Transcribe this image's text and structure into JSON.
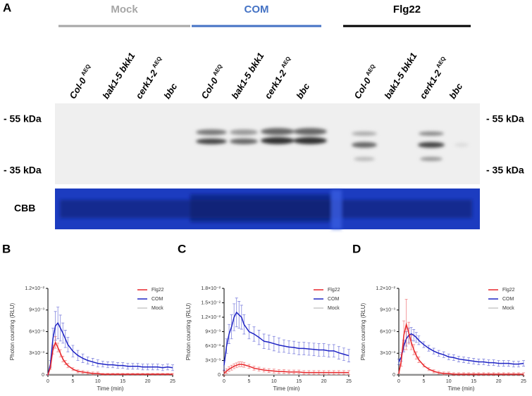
{
  "panel_a": {
    "label": "A",
    "groups": [
      "Mock",
      "COM",
      "Flg22"
    ],
    "group_colors": [
      "#a6a6a6",
      "#4472c4",
      "#000000"
    ],
    "lanes": [
      {
        "name": "Col-0",
        "sup": "AEQ"
      },
      {
        "name": "bak1-5 bkk1"
      },
      {
        "name": "cerk1-2",
        "sup": "AEQ"
      },
      {
        "name": "bbc"
      }
    ],
    "markers": [
      "- 55 kDa",
      "- 35 kDa"
    ],
    "stain": "CBB"
  },
  "chart_data": [
    {
      "type": "line",
      "panel": "B",
      "xlabel": "Time (min)",
      "ylabel": "Photon counting (RLU)",
      "legend": "upper right",
      "x": [
        0,
        0.5,
        1,
        1.5,
        2,
        2.5,
        3,
        3.5,
        4,
        5,
        6,
        7,
        8,
        9,
        10,
        11,
        12,
        13,
        14,
        15,
        16,
        17,
        18,
        19,
        20,
        21,
        22,
        23,
        24,
        25
      ],
      "xlim": [
        0,
        25
      ],
      "xticks": [
        0,
        5,
        10,
        15,
        20,
        25
      ],
      "ylim": [
        0,
        0.012
      ],
      "yticks": [
        0,
        {
          "value": 0.003,
          "label": "3×10⁻³"
        },
        {
          "value": 0.006,
          "label": "6×10⁻³"
        },
        {
          "value": 0.009,
          "label": "9×10⁻³"
        },
        {
          "value": 0.012,
          "label": "1.2×10⁻²"
        }
      ],
      "series": [
        {
          "name": "Flg22",
          "color": "#e8262a",
          "values": [
            0,
            0.001,
            0.0035,
            0.0045,
            0.0038,
            0.003,
            0.0022,
            0.0017,
            0.0013,
            0.0008,
            0.0005,
            0.0004,
            0.0003,
            0.0002,
            0.0002,
            0.0001,
            0.0001,
            0.0001,
            0.0001,
            0.0001,
            0.0001,
            0.0001,
            0.0001,
            0.0001,
            0.0001,
            0.0001,
            0.0001,
            0.0001,
            0.0001,
            0.0001
          ],
          "errors": [
            0,
            0.0002,
            0.0006,
            0.0008,
            0.0006,
            0.0005,
            0.0004,
            0.0003,
            0.0003,
            0.0002,
            0.0002,
            0.0002,
            0.0002,
            0.0002,
            0.0002,
            0.0001,
            0.0001,
            0.0001,
            0.0001,
            0.0001,
            0.0001,
            0.0001,
            0.0001,
            0.0001,
            0.0001,
            0.0001,
            0.0001,
            0.0001,
            0.0001,
            0.0001
          ]
        },
        {
          "name": "COM",
          "color": "#1f24c4",
          "values": [
            0,
            0.0015,
            0.005,
            0.0068,
            0.0072,
            0.0065,
            0.0058,
            0.005,
            0.0042,
            0.0033,
            0.0027,
            0.0023,
            0.002,
            0.0018,
            0.0016,
            0.0015,
            0.0014,
            0.0014,
            0.0013,
            0.0013,
            0.0012,
            0.0012,
            0.0012,
            0.0011,
            0.0011,
            0.0011,
            0.0011,
            0.001,
            0.0011,
            0.001
          ],
          "errors": [
            0,
            0.0005,
            0.0015,
            0.002,
            0.0022,
            0.0018,
            0.0014,
            0.0012,
            0.001,
            0.0008,
            0.0007,
            0.0006,
            0.0005,
            0.0005,
            0.0005,
            0.0004,
            0.0004,
            0.0004,
            0.0004,
            0.0004,
            0.0004,
            0.0004,
            0.0004,
            0.0004,
            0.0004,
            0.0004,
            0.0004,
            0.0004,
            0.0004,
            0.0004
          ]
        },
        {
          "name": "Mock",
          "color": "#c8c8c8",
          "values": [
            0.0001,
            0.0001,
            0.0001,
            0.0001,
            0.0001,
            0.0001,
            0.0001,
            0.0001,
            0.0001,
            0.0001,
            0.0001,
            0.0001,
            0.0001,
            0.0001,
            0.0001,
            0.0001,
            0.0001,
            0.0001,
            0.0001,
            0.0001,
            0.0001,
            0.0001,
            0.0001,
            0.0001,
            0.0001,
            0.0001,
            0.0001,
            0.0001,
            0.0001,
            0.0001
          ]
        }
      ]
    },
    {
      "type": "line",
      "panel": "C",
      "xlabel": "Time (min)",
      "ylabel": "Photon counting (RLU)",
      "legend": "upper right",
      "x": [
        0,
        0.5,
        1,
        1.5,
        2,
        2.5,
        3,
        3.5,
        4,
        5,
        6,
        7,
        8,
        9,
        10,
        11,
        12,
        13,
        14,
        15,
        16,
        17,
        18,
        19,
        20,
        21,
        22,
        23,
        24,
        25
      ],
      "xlim": [
        0,
        25
      ],
      "xticks": [
        0,
        5,
        10,
        15,
        20,
        25
      ],
      "ylim": [
        0,
        0.018
      ],
      "yticks": [
        0,
        {
          "value": 0.003,
          "label": "3×10⁻³"
        },
        {
          "value": 0.006,
          "label": "6×10⁻³"
        },
        {
          "value": 0.009,
          "label": "9×10⁻³"
        },
        {
          "value": 0.012,
          "label": "1.2×10⁻²"
        },
        {
          "value": 0.015,
          "label": "1.5×10⁻²"
        },
        {
          "value": 0.018,
          "label": "1.8×10⁻²"
        }
      ],
      "series": [
        {
          "name": "Flg22",
          "color": "#e8262a",
          "values": [
            0.0003,
            0.0008,
            0.0012,
            0.0015,
            0.0018,
            0.002,
            0.0022,
            0.0022,
            0.0021,
            0.0018,
            0.0014,
            0.0012,
            0.001,
            0.0009,
            0.0008,
            0.0007,
            0.0007,
            0.0006,
            0.0006,
            0.0006,
            0.0005,
            0.0005,
            0.0005,
            0.0005,
            0.0005,
            0.0005,
            0.0005,
            0.0005,
            0.0005,
            0.0005
          ],
          "errors": [
            0.0005,
            0.0005,
            0.0005,
            0.0005,
            0.0005,
            0.0005,
            0.0005,
            0.0005,
            0.0005,
            0.0004,
            0.0004,
            0.0004,
            0.0004,
            0.0004,
            0.0004,
            0.0004,
            0.0004,
            0.0004,
            0.0004,
            0.0004,
            0.0004,
            0.0004,
            0.0004,
            0.0004,
            0.0004,
            0.0004,
            0.0004,
            0.0004,
            0.0004,
            0.0004
          ]
        },
        {
          "name": "COM",
          "color": "#1f24c4",
          "values": [
            0.002,
            0.006,
            0.0085,
            0.01,
            0.012,
            0.013,
            0.0125,
            0.012,
            0.0105,
            0.009,
            0.0085,
            0.0078,
            0.007,
            0.0068,
            0.0065,
            0.0062,
            0.006,
            0.0058,
            0.0057,
            0.0055,
            0.0055,
            0.0054,
            0.0053,
            0.0052,
            0.0052,
            0.005,
            0.005,
            0.0046,
            0.0043,
            0.004
          ],
          "errors": [
            0.001,
            0.0015,
            0.002,
            0.0025,
            0.0028,
            0.003,
            0.0028,
            0.0025,
            0.002,
            0.0015,
            0.0015,
            0.0015,
            0.0015,
            0.0015,
            0.0015,
            0.0015,
            0.0013,
            0.0013,
            0.0013,
            0.0013,
            0.0013,
            0.0013,
            0.0013,
            0.0013,
            0.0013,
            0.0013,
            0.0013,
            0.0013,
            0.0013,
            0.0013
          ]
        },
        {
          "name": "Mock",
          "color": "#c8c8c8",
          "values": [
            0.0001,
            0.0001,
            0.0001,
            0.0001,
            0.0001,
            0.0001,
            0.0001,
            0.0001,
            0.0001,
            0.0001,
            0.0001,
            0.0001,
            0.0001,
            0.0001,
            0.0001,
            0.0001,
            0.0001,
            0.0001,
            0.0001,
            0.0001,
            0.0001,
            0.0001,
            0.0001,
            0.0001,
            0.0001,
            0.0001,
            0.0001,
            0.0001,
            0.0001,
            0.0001
          ]
        }
      ]
    },
    {
      "type": "line",
      "panel": "D",
      "xlabel": "Time (min)",
      "ylabel": "Photon counting (RLU)",
      "legend": "upper right",
      "x": [
        0,
        0.5,
        1,
        1.5,
        2,
        2.5,
        3,
        3.5,
        4,
        5,
        6,
        7,
        8,
        9,
        10,
        11,
        12,
        13,
        14,
        15,
        16,
        17,
        18,
        19,
        20,
        21,
        22,
        23,
        24,
        25
      ],
      "xlim": [
        0,
        25
      ],
      "xticks": [
        0,
        5,
        10,
        15,
        20,
        25
      ],
      "ylim": [
        0,
        0.012
      ],
      "yticks": [
        0,
        {
          "value": 0.003,
          "label": "3×10⁻³"
        },
        {
          "value": 0.006,
          "label": "6×10⁻³"
        },
        {
          "value": 0.009,
          "label": "9×10⁻³"
        },
        {
          "value": 0.012,
          "label": "1.2×10⁻²"
        }
      ],
      "series": [
        {
          "name": "Flg22",
          "color": "#e8262a",
          "values": [
            0.0002,
            0.002,
            0.0055,
            0.007,
            0.0058,
            0.0045,
            0.0035,
            0.0027,
            0.0021,
            0.0013,
            0.0008,
            0.0005,
            0.0003,
            0.0002,
            0.0002,
            0.0001,
            0.0001,
            0.0001,
            0.0001,
            0.0001,
            0.0001,
            0.0001,
            0.0001,
            0.0001,
            0.0001,
            0.0001,
            0.0001,
            0.0001,
            0.0001,
            0.0001
          ],
          "errors": [
            0,
            0.0008,
            0.002,
            0.0035,
            0.0015,
            0.001,
            0.0007,
            0.0005,
            0.0004,
            0.0002,
            0.0002,
            0.0002,
            0.0002,
            0.0002,
            0.0002,
            0.0002,
            0.0002,
            0.0002,
            0.0002,
            0.0002,
            0.0002,
            0.0002,
            0.0002,
            0.0002,
            0.0002,
            0.0002,
            0.0002,
            0.0002,
            0.0002,
            0.0002
          ]
        },
        {
          "name": "COM",
          "color": "#1f24c4",
          "values": [
            0.0018,
            0.0025,
            0.004,
            0.005,
            0.0055,
            0.0057,
            0.0055,
            0.0052,
            0.0048,
            0.0042,
            0.0037,
            0.0033,
            0.003,
            0.0028,
            0.0025,
            0.0024,
            0.0022,
            0.0021,
            0.002,
            0.0019,
            0.0018,
            0.0018,
            0.0017,
            0.0017,
            0.0016,
            0.0016,
            0.0016,
            0.0015,
            0.0015,
            0.0016
          ],
          "errors": [
            0.0004,
            0.0006,
            0.0008,
            0.001,
            0.001,
            0.0009,
            0.0008,
            0.0007,
            0.0006,
            0.0004,
            0.0004,
            0.0004,
            0.0004,
            0.0004,
            0.0004,
            0.0004,
            0.0004,
            0.0004,
            0.0004,
            0.0004,
            0.0004,
            0.0004,
            0.0004,
            0.0004,
            0.0004,
            0.0004,
            0.0004,
            0.0004,
            0.0004,
            0.0004
          ]
        },
        {
          "name": "Mock",
          "color": "#c8c8c8",
          "values": [
            0.0001,
            0.0001,
            0.0001,
            0.0001,
            0.0001,
            0.0001,
            0.0001,
            0.0001,
            0.0001,
            0.0001,
            0.0001,
            0.0001,
            0.0001,
            0.0001,
            0.0001,
            0.0001,
            0.0001,
            0.0001,
            0.0001,
            0.0001,
            0.0001,
            0.0001,
            0.0001,
            0.0001,
            0.0001,
            0.0001,
            0.0001,
            0.0001,
            0.0001,
            0.0001
          ]
        }
      ]
    }
  ]
}
